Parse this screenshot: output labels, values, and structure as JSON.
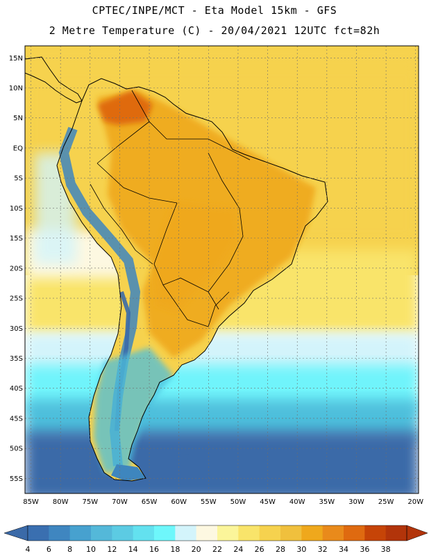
{
  "header": {
    "line1": "CPTEC/INPE/MCT -  Eta Model 15km - GFS",
    "line2": "2 Metre Temperature (C) - 20/04/2021 12UTC fct=82h"
  },
  "map": {
    "lat_labels": [
      "15N",
      "10N",
      "5N",
      "EQ",
      "5S",
      "10S",
      "15S",
      "20S",
      "25S",
      "30S",
      "35S",
      "40S",
      "45S",
      "50S",
      "55S"
    ],
    "lon_labels": [
      "85W",
      "80W",
      "75W",
      "70W",
      "65W",
      "60W",
      "55W",
      "50W",
      "45W",
      "40W",
      "35W",
      "30W",
      "25W",
      "20W"
    ],
    "lat_values": [
      15,
      10,
      5,
      0,
      -5,
      -10,
      -15,
      -20,
      -25,
      -30,
      -35,
      -40,
      -45,
      -50,
      -55
    ],
    "lon_values": [
      -85,
      -80,
      -75,
      -70,
      -65,
      -60,
      -55,
      -50,
      -45,
      -40,
      -35,
      -30,
      -25,
      -20
    ],
    "lat_range": [
      -57.5,
      17
    ],
    "lon_range": [
      -86,
      -19.5
    ]
  },
  "colorbar": {
    "labels": [
      "4",
      "6",
      "8",
      "10",
      "12",
      "14",
      "16",
      "18",
      "20",
      "22",
      "24",
      "26",
      "28",
      "30",
      "32",
      "34",
      "36",
      "38"
    ],
    "colors": [
      "#3a6fb0",
      "#3f86c0",
      "#47a1cf",
      "#54b8d9",
      "#5ccbe3",
      "#63e1ef",
      "#6ef7fb",
      "#d3f4fb",
      "#fdf8e1",
      "#fbf59a",
      "#f9e46a",
      "#f6d24e",
      "#f0c03d",
      "#efa81c",
      "#e98a1b",
      "#df6a10",
      "#c64407",
      "#b2340a"
    ],
    "low_color": "#3b6aa8",
    "high_color": "#b2340a"
  },
  "palette": {
    "ocean_deep": "#3b6aa8",
    "ocean_mid": "#4ebfdc",
    "ocean_light": "#6ff4fb",
    "ocean_pale": "#d3f4fb",
    "warm_pale": "#fdf8e1",
    "warm_yellow": "#f9e46a",
    "warm_gold": "#f6d24e",
    "warm_orange": "#efa81c",
    "hot": "#df6a10",
    "andes": "#3e86be",
    "grid": "#6e6e6e"
  }
}
